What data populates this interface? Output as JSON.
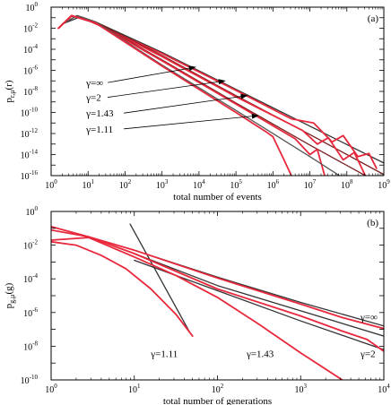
{
  "chart_data": [
    {
      "type": "line",
      "panel_label": "(a)",
      "xlabel": "total number of events",
      "ylabel": "p_{r,μ}(r)",
      "ylabel_main": "p",
      "ylabel_sub": "r,μ",
      "ylabel_tail": "(r)",
      "xscale": "log",
      "yscale": "log",
      "xlim_exp": [
        0,
        9
      ],
      "ylim_exp": [
        -16,
        0
      ],
      "xtick_exp": [
        0,
        1,
        2,
        3,
        4,
        5,
        6,
        7,
        8,
        9
      ],
      "ytick_exp": [
        -16,
        -14,
        -12,
        -10,
        -8,
        -6,
        -4,
        -2,
        0
      ],
      "grid": false,
      "annotations": [
        {
          "text": "γ=∞",
          "at_log": [
            0.95,
            -7.5
          ],
          "arrow_to_log": [
            3.9,
            -5.7
          ]
        },
        {
          "text": "γ=2",
          "at_log": [
            0.95,
            -8.9
          ],
          "arrow_to_log": [
            4.7,
            -7.0
          ]
        },
        {
          "text": "γ=1.43",
          "at_log": [
            0.95,
            -10.4
          ],
          "arrow_to_log": [
            5.3,
            -8.4
          ]
        },
        {
          "text": "γ=1.11",
          "at_log": [
            0.95,
            -11.9
          ],
          "arrow_to_log": [
            5.6,
            -10.3
          ]
        }
      ],
      "series": [
        {
          "label": "γ=∞ theory",
          "color": "#333333",
          "points_log": [
            [
              0.3,
              -1.6
            ],
            [
              0.8,
              -0.9
            ],
            [
              1.2,
              -1.4
            ],
            [
              3,
              -4.3
            ],
            [
              5,
              -7.8
            ],
            [
              7,
              -11.3
            ],
            [
              9,
              -14.8
            ]
          ]
        },
        {
          "label": "γ=∞ simulation",
          "color": "#e8283c",
          "points_log": [
            [
              0.2,
              -2.0
            ],
            [
              0.55,
              -0.85
            ],
            [
              0.9,
              -1.1
            ],
            [
              3,
              -4.4
            ],
            [
              5,
              -7.9
            ],
            [
              6.5,
              -10.6
            ],
            [
              7.1,
              -11.0
            ],
            [
              7.6,
              -12.8
            ],
            [
              7.9,
              -12.2
            ],
            [
              8.3,
              -14.2
            ],
            [
              8.6,
              -13.9
            ],
            [
              8.8,
              -15.3
            ]
          ]
        },
        {
          "label": "γ=2 theory",
          "color": "#7a1f1f",
          "points_log": [
            [
              0.3,
              -1.6
            ],
            [
              0.7,
              -0.8
            ],
            [
              1.2,
              -1.4
            ],
            [
              3,
              -4.6
            ],
            [
              5,
              -8.4
            ],
            [
              7,
              -12.1
            ],
            [
              9,
              -15.9
            ]
          ]
        },
        {
          "label": "γ=2 simulation",
          "color": "#e8283c",
          "points_log": [
            [
              0.2,
              -2.0
            ],
            [
              0.55,
              -0.8
            ],
            [
              1.2,
              -1.5
            ],
            [
              3,
              -4.7
            ],
            [
              5,
              -8.5
            ],
            [
              6.8,
              -11.7
            ],
            [
              7.2,
              -13.0
            ],
            [
              7.5,
              -12.4
            ],
            [
              7.9,
              -14.5
            ],
            [
              8.2,
              -13.8
            ],
            [
              8.5,
              -16.0
            ]
          ]
        },
        {
          "label": "γ=1.43 theory",
          "color": "#7a1f1f",
          "points_log": [
            [
              0.3,
              -1.6
            ],
            [
              0.7,
              -0.8
            ],
            [
              1.2,
              -1.4
            ],
            [
              3,
              -5.0
            ],
            [
              5,
              -9.1
            ],
            [
              7,
              -13.1
            ],
            [
              8.5,
              -16.0
            ]
          ]
        },
        {
          "label": "γ=1.43 simulation",
          "color": "#e8283c",
          "points_log": [
            [
              0.2,
              -2.0
            ],
            [
              0.55,
              -0.8
            ],
            [
              1.2,
              -1.5
            ],
            [
              3,
              -5.1
            ],
            [
              5,
              -9.2
            ],
            [
              6.6,
              -12.5
            ],
            [
              7.0,
              -14.0
            ],
            [
              7.2,
              -13.5
            ],
            [
              7.4,
              -16.0
            ]
          ]
        },
        {
          "label": "γ=1.11 theory",
          "color": "#555555",
          "points_log": [
            [
              0.3,
              -1.6
            ],
            [
              0.7,
              -0.8
            ],
            [
              1.2,
              -1.4
            ],
            [
              3,
              -5.5
            ],
            [
              5,
              -9.8
            ],
            [
              7,
              -14.2
            ],
            [
              7.8,
              -16.0
            ]
          ]
        },
        {
          "label": "γ=1.11 simulation",
          "color": "#e8283c",
          "points_log": [
            [
              0.2,
              -2.0
            ],
            [
              0.55,
              -0.8
            ],
            [
              1.2,
              -1.5
            ],
            [
              3,
              -5.6
            ],
            [
              5,
              -10.0
            ],
            [
              5.8,
              -11.8
            ],
            [
              6.0,
              -12.3
            ],
            [
              6.3,
              -14.5
            ],
            [
              6.5,
              -16.0
            ]
          ]
        }
      ]
    },
    {
      "type": "line",
      "panel_label": "(b)",
      "xlabel": "total number of generations",
      "ylabel": "p_{g,μ}(g)",
      "ylabel_main": "p",
      "ylabel_sub": "g,μ",
      "ylabel_tail": "(g)",
      "xscale": "log",
      "yscale": "log",
      "xlim_exp": [
        0,
        4
      ],
      "ylim_exp": [
        -10,
        0
      ],
      "xtick_exp": [
        0,
        1,
        2,
        3,
        4
      ],
      "ytick_exp": [
        -10,
        -8,
        -6,
        -4,
        -2,
        0
      ],
      "grid": false,
      "annotations": [
        {
          "text": "γ=∞",
          "at_log": [
            3.72,
            -6.45
          ]
        },
        {
          "text": "γ=2",
          "at_log": [
            3.72,
            -8.65
          ]
        },
        {
          "text": "γ=1.43",
          "at_log": [
            2.35,
            -8.65
          ]
        },
        {
          "text": "γ=1.11",
          "at_log": [
            1.2,
            -8.65
          ]
        }
      ],
      "series": [
        {
          "label": "γ=1.11 theory",
          "color": "#333333",
          "points_log": [
            [
              0.95,
              -0.75
            ],
            [
              1.67,
              -7.2
            ]
          ]
        },
        {
          "label": "γ=1.11 simulation",
          "color": "#e8283c",
          "points_log": [
            [
              0,
              -1.8
            ],
            [
              0.3,
              -2.0
            ],
            [
              0.6,
              -2.6
            ],
            [
              0.9,
              -3.4
            ],
            [
              1.2,
              -4.6
            ],
            [
              1.5,
              -6.1
            ],
            [
              1.7,
              -7.4
            ]
          ]
        },
        {
          "label": "γ=1.43 theory",
          "color": "#333333",
          "points_log": [
            [
              1.0,
              -2.9
            ],
            [
              2.0,
              -4.7
            ],
            [
              3.0,
              -6.5
            ],
            [
              4.0,
              -8.2
            ]
          ]
        },
        {
          "label": "γ=1.43 simulation",
          "color": "#e8283c",
          "points_log": [
            [
              0,
              -1.7
            ],
            [
              0.45,
              -1.55
            ],
            [
              1.0,
              -2.7
            ],
            [
              1.5,
              -3.8
            ],
            [
              2.0,
              -5.1
            ],
            [
              2.5,
              -6.7
            ],
            [
              3.0,
              -8.4
            ],
            [
              3.5,
              -10.0
            ]
          ]
        },
        {
          "label": "γ=2 theory",
          "color": "#333333",
          "points_log": [
            [
              1.0,
              -2.5
            ],
            [
              2.0,
              -4.4
            ],
            [
              3.0,
              -5.9
            ],
            [
              4.0,
              -7.4
            ]
          ]
        },
        {
          "label": "γ=2 simulation",
          "color": "#e8283c",
          "points_log": [
            [
              0,
              -1.1
            ],
            [
              0.45,
              -1.5
            ],
            [
              1.0,
              -2.5
            ],
            [
              2.0,
              -4.6
            ],
            [
              3.0,
              -6.2
            ],
            [
              3.5,
              -7.1
            ],
            [
              3.8,
              -7.6
            ],
            [
              4.0,
              -8.3
            ]
          ]
        },
        {
          "label": "γ=∞ theory",
          "color": "#333333",
          "points_log": [
            [
              1.0,
              -2.3
            ],
            [
              2.0,
              -3.9
            ],
            [
              3.0,
              -5.4
            ],
            [
              4.0,
              -6.8
            ]
          ]
        },
        {
          "label": "γ=∞ simulation",
          "color": "#e8283c",
          "points_log": [
            [
              0,
              -0.9
            ],
            [
              0.45,
              -1.5
            ],
            [
              1.0,
              -2.3
            ],
            [
              2.0,
              -3.95
            ],
            [
              3.0,
              -5.5
            ],
            [
              3.5,
              -6.3
            ],
            [
              4.0,
              -6.95
            ]
          ]
        }
      ]
    }
  ]
}
